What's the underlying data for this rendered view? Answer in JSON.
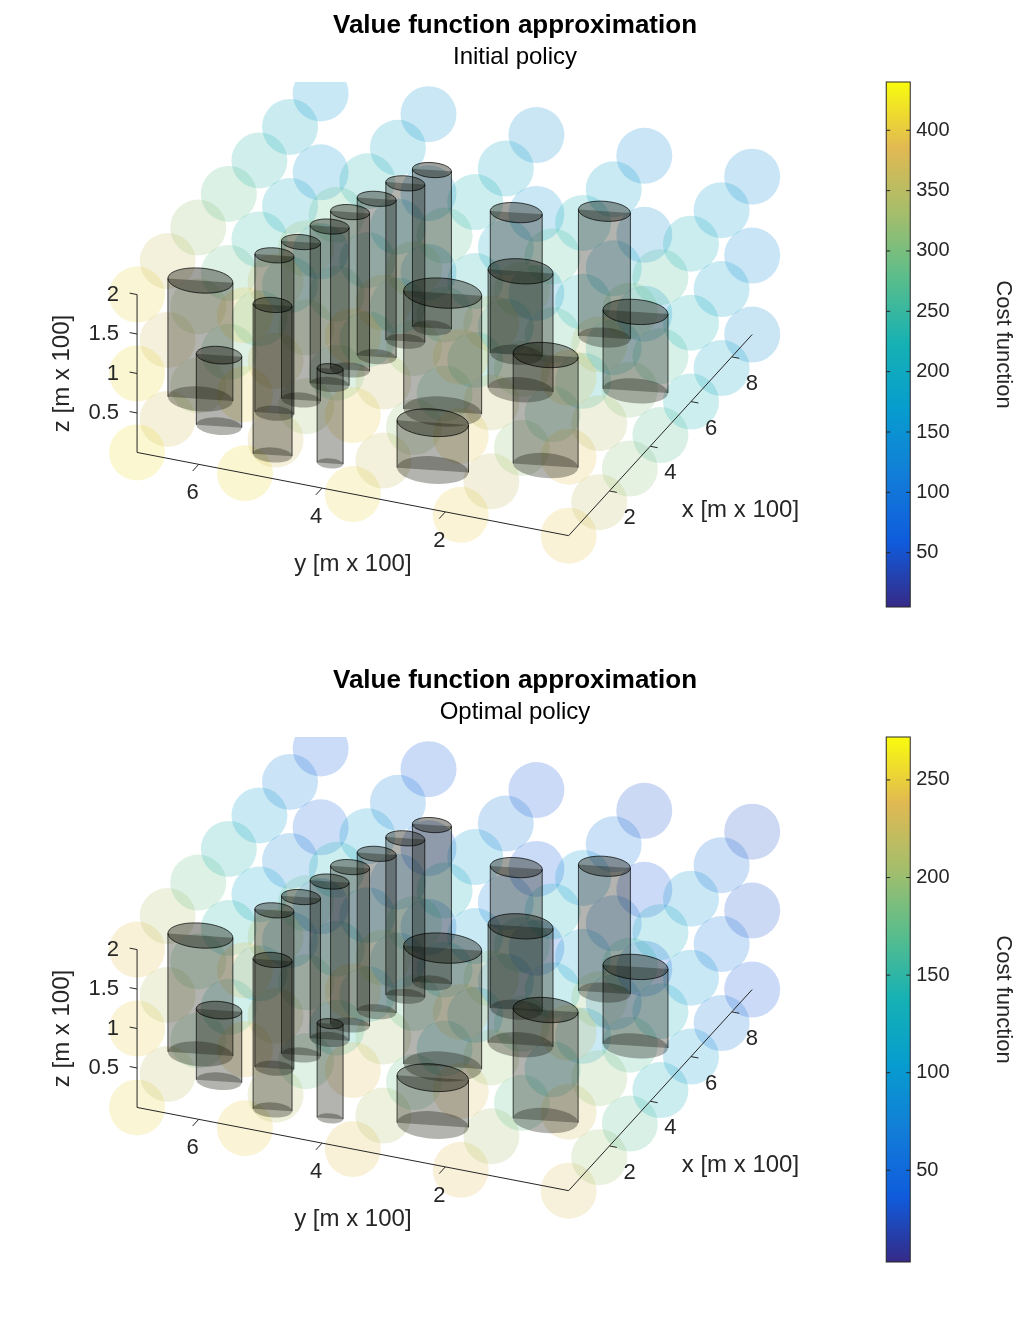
{
  "chart_data": [
    {
      "type": "scatter",
      "title": "Value function approximation",
      "subtitle": "Initial policy",
      "x_label": "x [m x 100]",
      "y_label": "y [m x 100]",
      "z_label": "z [m x 100]",
      "xlim": [
        0,
        9
      ],
      "ylim": [
        0,
        7
      ],
      "zlim": [
        0,
        2
      ],
      "xticks": [
        2,
        4,
        6,
        8
      ],
      "yticks": [
        2,
        4,
        6
      ],
      "zticks": [
        0.5,
        1,
        1.5,
        2
      ],
      "x": [
        0,
        1.5,
        3,
        4.5,
        6,
        7.5,
        9
      ],
      "y": [
        0,
        1.75,
        3.5,
        5.25,
        7
      ],
      "z": [
        0,
        1,
        2
      ],
      "cost": [
        [
          [
            395,
            353,
            312,
            270,
            228,
            187,
            145
          ],
          [
            400,
            358,
            317,
            275,
            233,
            192,
            150
          ],
          [
            405,
            363,
            322,
            280,
            238,
            197,
            155
          ],
          [
            410,
            368,
            327,
            285,
            243,
            202,
            160
          ],
          [
            415,
            373,
            332,
            290,
            248,
            207,
            165
          ]
        ],
        [
          [
            390,
            348,
            307,
            265,
            223,
            182,
            140
          ],
          [
            395,
            353,
            312,
            270,
            228,
            187,
            145
          ],
          [
            400,
            358,
            317,
            275,
            233,
            192,
            150
          ],
          [
            405,
            363,
            322,
            280,
            238,
            197,
            155
          ],
          [
            410,
            368,
            327,
            285,
            243,
            202,
            160
          ]
        ],
        [
          [
            385,
            343,
            302,
            260,
            218,
            177,
            135
          ],
          [
            390,
            348,
            307,
            265,
            223,
            182,
            140
          ],
          [
            395,
            353,
            312,
            270,
            228,
            187,
            145
          ],
          [
            400,
            358,
            317,
            275,
            233,
            192,
            150
          ],
          [
            405,
            363,
            322,
            280,
            238,
            197,
            155
          ]
        ]
      ],
      "colorbar": {
        "label": "Cost function",
        "range": [
          5,
          440
        ],
        "ticks": [
          50,
          100,
          150,
          200,
          250,
          300,
          350,
          400
        ]
      },
      "obstacles": [
        {
          "x": 6.9,
          "y": 4.5,
          "r": 0.3,
          "h": 2
        },
        {
          "x": 6.2,
          "y": 4.7,
          "r": 0.3,
          "h": 2
        },
        {
          "x": 5.4,
          "y": 4.9,
          "r": 0.3,
          "h": 2
        },
        {
          "x": 7.8,
          "y": 2.0,
          "r": 0.4,
          "h": 1.6
        },
        {
          "x": 4.7,
          "y": 5.1,
          "r": 0.3,
          "h": 2
        },
        {
          "x": 6.5,
          "y": 3.0,
          "r": 0.4,
          "h": 1.8
        },
        {
          "x": 2.5,
          "y": 6.8,
          "r": 0.5,
          "h": 1.5
        },
        {
          "x": 4.0,
          "y": 5.2,
          "r": 0.3,
          "h": 2
        },
        {
          "x": 3.2,
          "y": 5.4,
          "r": 0.3,
          "h": 2
        },
        {
          "x": 2.5,
          "y": 5.6,
          "r": 0.3,
          "h": 2
        },
        {
          "x": 1.6,
          "y": 6.2,
          "r": 0.35,
          "h": 0.9
        },
        {
          "x": 5.2,
          "y": 2.5,
          "r": 0.5,
          "h": 1.5
        },
        {
          "x": 3.8,
          "y": 3.3,
          "r": 0.6,
          "h": 1.5
        },
        {
          "x": 6.0,
          "y": 0.9,
          "r": 0.5,
          "h": 1.0
        },
        {
          "x": 0.9,
          "y": 5.1,
          "r": 0.3,
          "h": 1.9
        },
        {
          "x": 1.0,
          "y": 4.2,
          "r": 0.2,
          "h": 1.2
        },
        {
          "x": 1.5,
          "y": 2.7,
          "r": 0.55,
          "h": 0.6
        },
        {
          "x": 2.5,
          "y": 1.2,
          "r": 0.5,
          "h": 1.4
        }
      ]
    },
    {
      "type": "scatter",
      "title": "Value function approximation",
      "subtitle": "Optimal policy",
      "x_label": "x [m x 100]",
      "y_label": "y [m x 100]",
      "z_label": "z [m x 100]",
      "xlim": [
        0,
        9
      ],
      "ylim": [
        0,
        7
      ],
      "zlim": [
        0,
        2
      ],
      "xticks": [
        2,
        4,
        6,
        8
      ],
      "yticks": [
        2,
        4,
        6
      ],
      "zticks": [
        0.5,
        1,
        1.5,
        2
      ],
      "x": [
        0,
        1.5,
        3,
        4.5,
        6,
        7.5,
        9
      ],
      "y": [
        0,
        1.75,
        3.5,
        5.25,
        7
      ],
      "z": [
        0,
        1,
        2
      ],
      "cost": [
        [
          [
            234,
            201,
            167,
            134,
            101,
            67,
            34
          ],
          [
            238,
            205,
            171,
            138,
            105,
            71,
            38
          ],
          [
            242,
            209,
            175,
            142,
            109,
            75,
            42
          ],
          [
            246,
            213,
            179,
            146,
            113,
            79,
            46
          ],
          [
            250,
            217,
            183,
            150,
            117,
            83,
            50
          ]
        ],
        [
          [
            230,
            197,
            163,
            130,
            97,
            63,
            30
          ],
          [
            234,
            201,
            167,
            134,
            101,
            67,
            34
          ],
          [
            238,
            205,
            171,
            138,
            105,
            71,
            38
          ],
          [
            242,
            209,
            175,
            142,
            109,
            75,
            42
          ],
          [
            246,
            213,
            179,
            146,
            113,
            79,
            46
          ]
        ],
        [
          [
            226,
            193,
            159,
            126,
            93,
            59,
            26
          ],
          [
            230,
            197,
            163,
            130,
            97,
            63,
            30
          ],
          [
            234,
            201,
            167,
            134,
            101,
            67,
            34
          ],
          [
            238,
            205,
            171,
            138,
            105,
            71,
            38
          ],
          [
            242,
            209,
            175,
            142,
            109,
            75,
            42
          ]
        ]
      ],
      "colorbar": {
        "label": "Cost function",
        "range": [
          3,
          272
        ],
        "ticks": [
          50,
          100,
          150,
          200,
          250
        ]
      },
      "obstacles": [
        {
          "x": 6.9,
          "y": 4.5,
          "r": 0.3,
          "h": 2
        },
        {
          "x": 6.2,
          "y": 4.7,
          "r": 0.3,
          "h": 2
        },
        {
          "x": 5.4,
          "y": 4.9,
          "r": 0.3,
          "h": 2
        },
        {
          "x": 7.8,
          "y": 2.0,
          "r": 0.4,
          "h": 1.6
        },
        {
          "x": 4.7,
          "y": 5.1,
          "r": 0.3,
          "h": 2
        },
        {
          "x": 6.5,
          "y": 3.0,
          "r": 0.4,
          "h": 1.8
        },
        {
          "x": 2.5,
          "y": 6.8,
          "r": 0.5,
          "h": 1.5
        },
        {
          "x": 4.0,
          "y": 5.2,
          "r": 0.3,
          "h": 2
        },
        {
          "x": 3.2,
          "y": 5.4,
          "r": 0.3,
          "h": 2
        },
        {
          "x": 2.5,
          "y": 5.6,
          "r": 0.3,
          "h": 2
        },
        {
          "x": 1.6,
          "y": 6.2,
          "r": 0.35,
          "h": 0.9
        },
        {
          "x": 5.2,
          "y": 2.5,
          "r": 0.5,
          "h": 1.5
        },
        {
          "x": 3.8,
          "y": 3.3,
          "r": 0.6,
          "h": 1.5
        },
        {
          "x": 6.0,
          "y": 0.9,
          "r": 0.5,
          "h": 1.0
        },
        {
          "x": 0.9,
          "y": 5.1,
          "r": 0.3,
          "h": 1.9
        },
        {
          "x": 1.0,
          "y": 4.2,
          "r": 0.2,
          "h": 1.2
        },
        {
          "x": 1.5,
          "y": 2.7,
          "r": 0.55,
          "h": 0.6
        },
        {
          "x": 2.5,
          "y": 1.2,
          "r": 0.5,
          "h": 1.4
        }
      ]
    }
  ]
}
